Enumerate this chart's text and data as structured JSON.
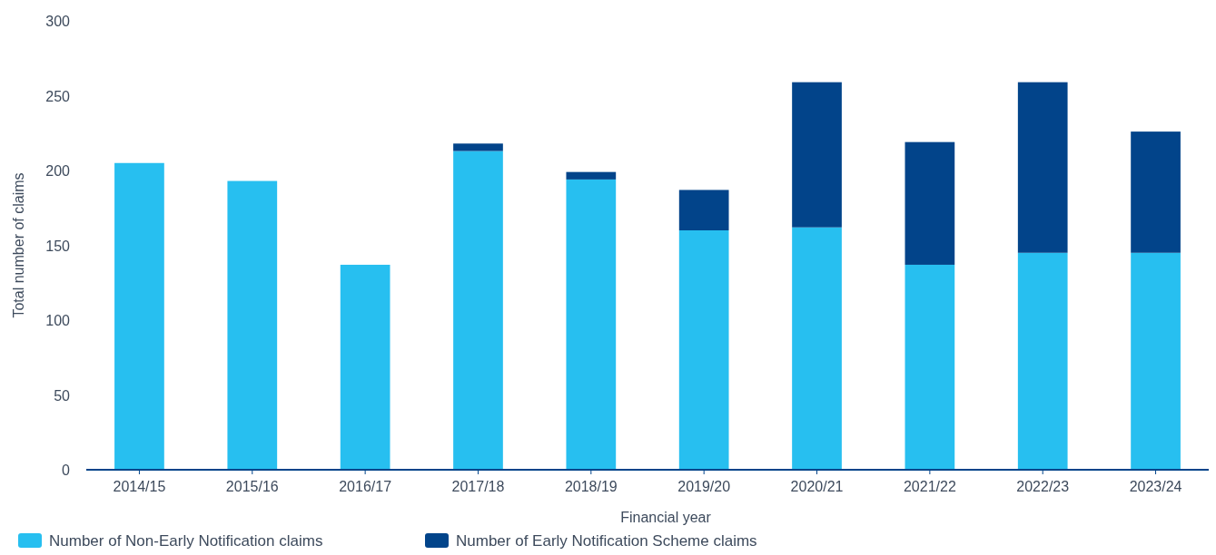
{
  "chart_data": {
    "type": "bar",
    "stacked": true,
    "xlabel": "Financial year",
    "ylabel": "Total number of claims",
    "categories": [
      "2014/15",
      "2015/16",
      "2016/17",
      "2017/18",
      "2018/19",
      "2019/20",
      "2020/21",
      "2021/22",
      "2022/23",
      "2023/24"
    ],
    "series": [
      {
        "name": "Number of Non-Early Notification claims",
        "color": "#27bff0",
        "values": [
          205,
          193,
          137,
          213,
          194,
          160,
          162,
          137,
          145,
          145
        ]
      },
      {
        "name": "Number of Early Notification Scheme claims",
        "color": "#02448a",
        "values": [
          0,
          0,
          0,
          5,
          5,
          27,
          97,
          82,
          114,
          81
        ]
      }
    ],
    "ylim": [
      0,
      300
    ],
    "yticks": [
      0,
      50,
      100,
      150,
      200,
      250,
      300
    ],
    "grid": false,
    "legend": "bottom left"
  }
}
